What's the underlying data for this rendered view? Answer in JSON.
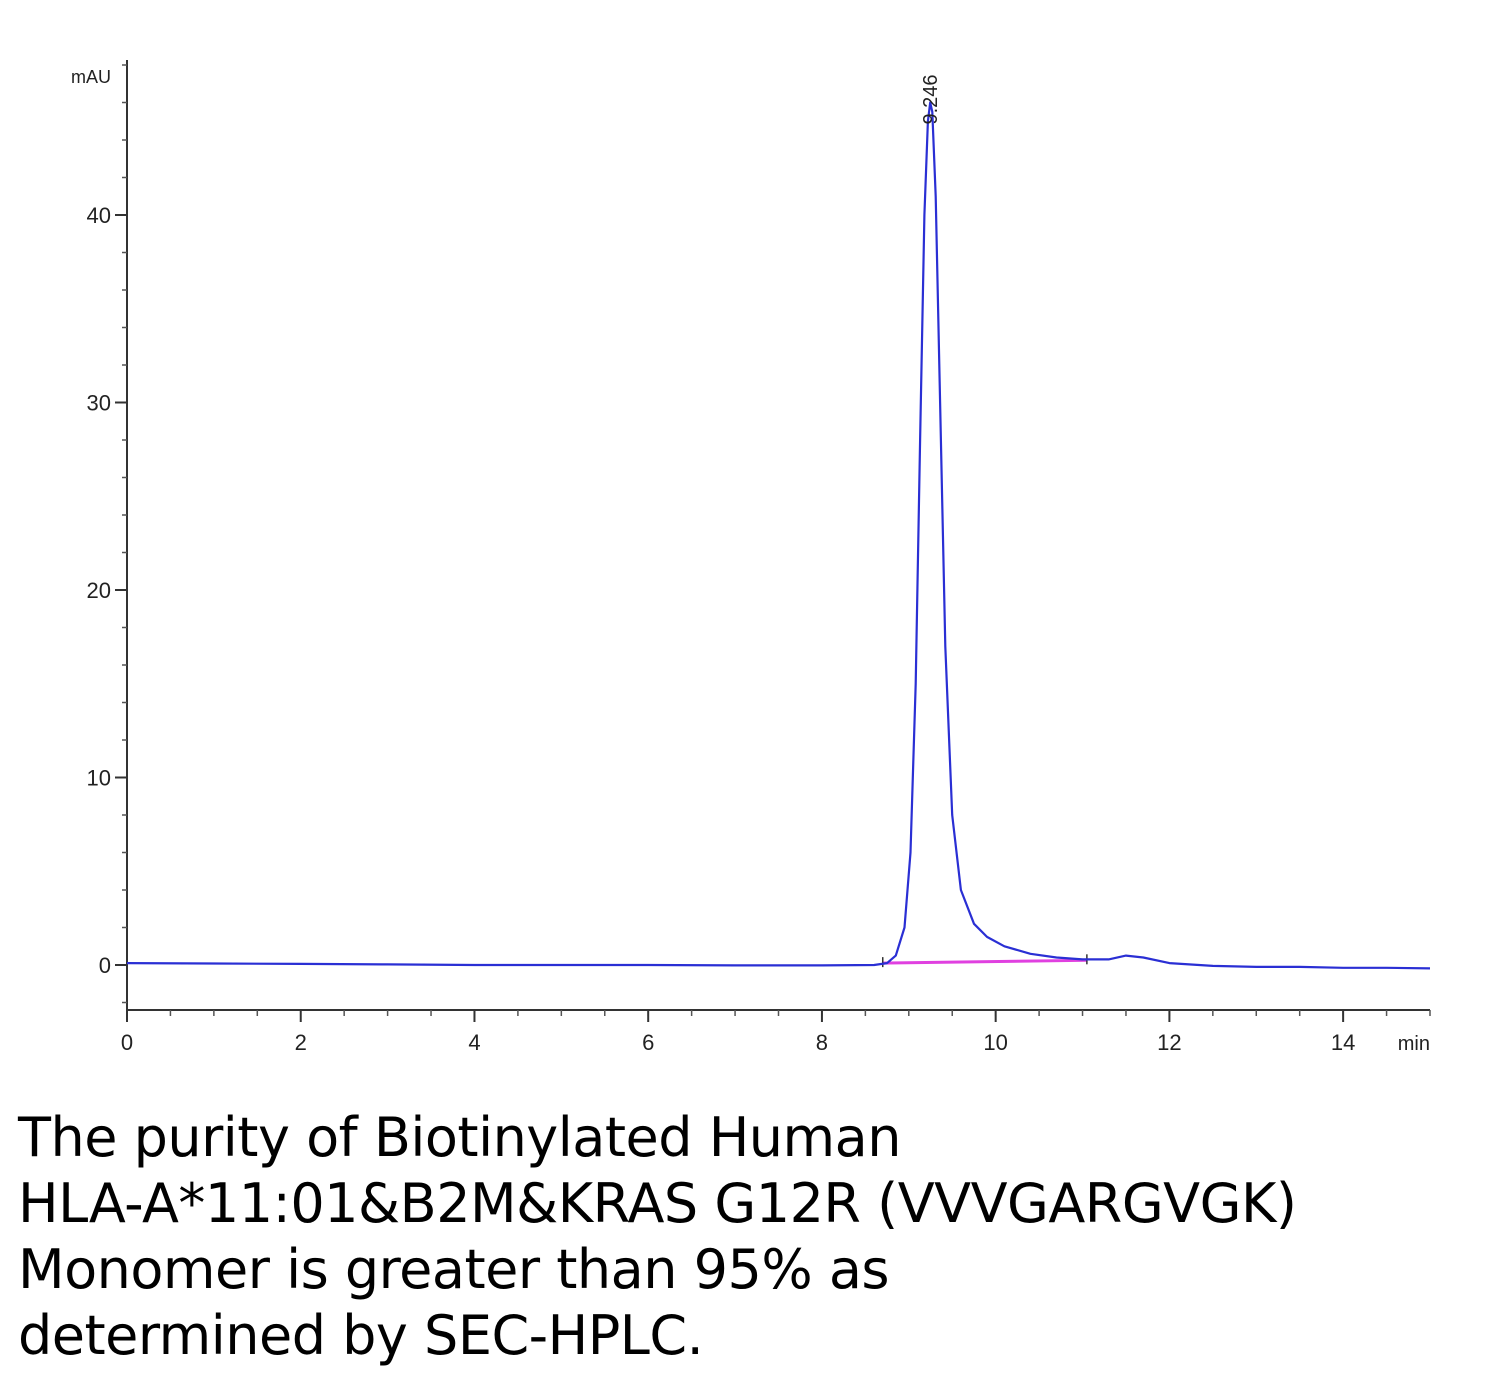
{
  "chart_data": {
    "type": "line",
    "title": "",
    "xlabel": "min",
    "ylabel": "mAU",
    "xlim": [
      0,
      15
    ],
    "ylim": [
      -2.4,
      48
    ],
    "x_ticks": [
      0,
      2,
      4,
      6,
      8,
      10,
      12,
      14
    ],
    "x_tick_labels": [
      "0",
      "2",
      "4",
      "6",
      "8",
      "10",
      "12",
      "14"
    ],
    "y_ticks": [
      0,
      10,
      20,
      30,
      40
    ],
    "y_tick_labels": [
      "0",
      "10",
      "20",
      "30",
      "40"
    ],
    "grid": false,
    "series": [
      {
        "color": "#2a2fd4",
        "points": [
          [
            0,
            0.1
          ],
          [
            1,
            0.08
          ],
          [
            2,
            0.06
          ],
          [
            3,
            0.03
          ],
          [
            4,
            0.0
          ],
          [
            5,
            0.0
          ],
          [
            6,
            0.0
          ],
          [
            7,
            -0.02
          ],
          [
            8,
            -0.02
          ],
          [
            8.6,
            0.0
          ],
          [
            8.75,
            0.1
          ],
          [
            8.85,
            0.5
          ],
          [
            8.95,
            2.0
          ],
          [
            9.02,
            6.0
          ],
          [
            9.08,
            15.0
          ],
          [
            9.13,
            28.0
          ],
          [
            9.18,
            40.0
          ],
          [
            9.22,
            45.0
          ],
          [
            9.246,
            46.0
          ],
          [
            9.27,
            45.5
          ],
          [
            9.31,
            41.0
          ],
          [
            9.36,
            30.0
          ],
          [
            9.42,
            17.0
          ],
          [
            9.5,
            8.0
          ],
          [
            9.6,
            4.0
          ],
          [
            9.75,
            2.2
          ],
          [
            9.9,
            1.5
          ],
          [
            10.1,
            1.0
          ],
          [
            10.4,
            0.6
          ],
          [
            10.7,
            0.4
          ],
          [
            11.0,
            0.3
          ],
          [
            11.3,
            0.3
          ],
          [
            11.5,
            0.5
          ],
          [
            11.7,
            0.4
          ],
          [
            12.0,
            0.1
          ],
          [
            12.5,
            -0.05
          ],
          [
            13.0,
            -0.1
          ],
          [
            13.5,
            -0.1
          ],
          [
            14.0,
            -0.15
          ],
          [
            14.5,
            -0.15
          ],
          [
            15.0,
            -0.18
          ]
        ]
      }
    ],
    "baseline": {
      "color": "#e040e0",
      "from": [
        8.7,
        0.1
      ],
      "to": [
        11.05,
        0.25
      ]
    },
    "peak_label": {
      "x": 9.246,
      "y": 46.0,
      "text": "9.246"
    }
  },
  "caption": {
    "lines": [
      "The purity of Biotinylated Human",
      "HLA-A*11:01&B2M&KRAS G12R (VVVGARGVGK)",
      "Monomer is greater than 95% as",
      "determined by SEC-HPLC."
    ]
  }
}
